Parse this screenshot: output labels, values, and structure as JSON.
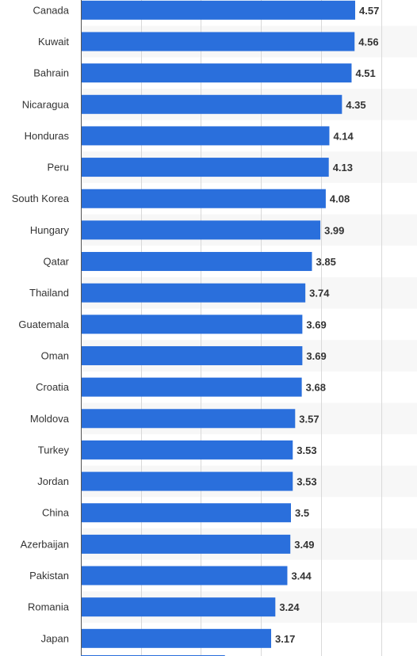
{
  "chart_data": {
    "type": "bar",
    "orientation": "horizontal",
    "categories": [
      "Canada",
      "Kuwait",
      "Bahrain",
      "Nicaragua",
      "Honduras",
      "Peru",
      "South Korea",
      "Hungary",
      "Qatar",
      "Thailand",
      "Guatemala",
      "Oman",
      "Croatia",
      "Moldova",
      "Turkey",
      "Jordan",
      "China",
      "Azerbaijan",
      "Pakistan",
      "Romania",
      "Japan"
    ],
    "values": [
      4.57,
      4.56,
      4.51,
      4.35,
      4.14,
      4.13,
      4.08,
      3.99,
      3.85,
      3.74,
      3.69,
      3.69,
      3.68,
      3.57,
      3.53,
      3.53,
      3.5,
      3.49,
      3.44,
      3.24,
      3.17
    ],
    "value_labels": [
      "4.57",
      "4.56",
      "4.51",
      "4.35",
      "4.14",
      "4.13",
      "4.08",
      "3.99",
      "3.85",
      "3.74",
      "3.69",
      "3.69",
      "3.68",
      "3.57",
      "3.53",
      "3.53",
      "3.5",
      "3.49",
      "3.44",
      "3.24",
      "3.17"
    ],
    "xlim": [
      0,
      5.6
    ],
    "grid": true,
    "title": "",
    "xlabel": "",
    "ylabel": "",
    "colors": {
      "bar": "#2a6fdc",
      "label": "#333333",
      "value_label": "#333333",
      "gridline": "#d9d9d9",
      "band": "#f7f7f7",
      "axis": "#555555"
    }
  }
}
